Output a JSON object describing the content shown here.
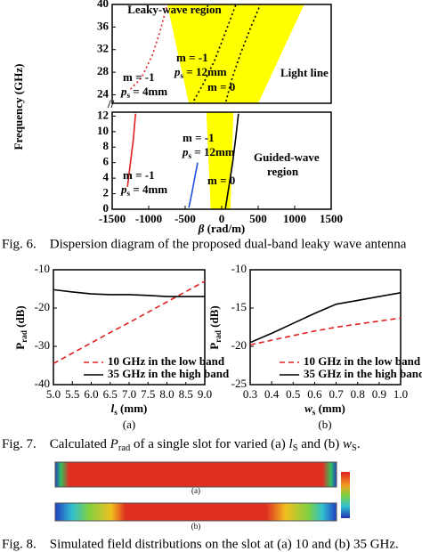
{
  "chart_data": [
    {
      "type": "line",
      "xlim": [
        -1500,
        1500
      ],
      "ylim": [
        22.5,
        40
      ],
      "yticks": [
        24,
        28,
        32,
        36,
        40
      ],
      "regions": [
        {
          "color": "#ffff00",
          "x": [
            -745,
            1130,
            500,
            -450
          ],
          "values": [
            40,
            40,
            22.5,
            22.5
          ]
        }
      ],
      "series": [
        {
          "color": "#e02020",
          "dash": "dotted",
          "x": [
            -1250,
            -1100,
            -950,
            -850,
            -745
          ],
          "values": [
            25,
            27,
            31,
            35,
            40
          ]
        },
        {
          "color": "#000000",
          "dash": "dotted",
          "x": [
            -380,
            -250,
            -100,
            50,
            195
          ],
          "values": [
            23,
            26,
            30,
            35,
            40
          ]
        },
        {
          "color": "#000000",
          "dash": "dotted",
          "x": [
            60,
            120,
            250,
            400,
            530
          ],
          "values": [
            22.8,
            26,
            31,
            36,
            40
          ]
        }
      ],
      "annotations": [
        "Leaky-wave region",
        "m = -1",
        [
          {
            "text": "p",
            "style": "italic"
          },
          {
            "text": "s",
            "style": "sub"
          },
          {
            "text": " = 12mm"
          }
        ],
        "m = -1",
        [
          {
            "text": "p",
            "style": "italic"
          },
          {
            "text": "s",
            "style": "sub"
          },
          {
            "text": " = 4mm"
          }
        ],
        "m = 0",
        "Light line"
      ]
    },
    {
      "type": "line",
      "xlim": [
        -1500,
        1500
      ],
      "ylim": [
        0,
        12.5
      ],
      "yticks": [
        0,
        2,
        4,
        6,
        8,
        10,
        12
      ],
      "xticks": [
        -1500,
        -1000,
        -500,
        0,
        500,
        1000,
        1500
      ],
      "x_label": [
        {
          "text": "β",
          "style": "italic"
        },
        {
          "text": " (rad/m)"
        }
      ],
      "y_label": "Frequency (GHz)",
      "regions": [
        {
          "color": "#ffff00",
          "x": [
            -210,
            160,
            120,
            -150
          ],
          "values": [
            12.5,
            12.5,
            0,
            0
          ]
        }
      ],
      "series": [
        {
          "color": "#e02020",
          "dash": "solid",
          "x": [
            -1290,
            -1250,
            -1210,
            -1180
          ],
          "values": [
            2.9,
            6,
            9,
            12.3
          ]
        },
        {
          "color": "#2050e0",
          "dash": "solid",
          "x": [
            -450,
            -410,
            -370,
            -330
          ],
          "values": [
            0.2,
            2,
            4,
            6
          ]
        },
        {
          "color": "#000000",
          "dash": "solid",
          "x": [
            50,
            100,
            150,
            190,
            230
          ],
          "values": [
            0,
            3,
            6,
            9,
            12.3
          ]
        }
      ],
      "annotations": [
        "m = -1",
        [
          {
            "text": "p",
            "style": "italic"
          },
          {
            "text": "s",
            "style": "sub"
          },
          {
            "text": " = 12mm"
          }
        ],
        "Guided-wave",
        "region",
        "m = -1",
        [
          {
            "text": "p",
            "style": "italic"
          },
          {
            "text": "s",
            "style": "sub"
          },
          {
            "text": " = 4mm"
          }
        ],
        "m = 0"
      ]
    },
    {
      "type": "line",
      "xlim": [
        5,
        9
      ],
      "ylim": [
        -40,
        -10
      ],
      "yticks": [
        -40,
        -30,
        -20,
        -10
      ],
      "xticks": [
        {
          "value": 5,
          "label": "5.0"
        },
        5.5,
        {
          "value": 6,
          "label": "6.0"
        },
        6.5,
        {
          "value": 7,
          "label": "7.0"
        },
        7.5,
        {
          "value": 8,
          "label": "8.0"
        },
        8.5,
        {
          "value": 9,
          "label": "9.0"
        }
      ],
      "x_label": [
        {
          "text": "l",
          "style": "italic"
        },
        {
          "text": "s",
          "style": "sub"
        },
        {
          "text": " (mm)"
        }
      ],
      "y_label": [
        {
          "text": "P"
        },
        {
          "text": "rad",
          "style": "sub"
        },
        {
          "text": " (dB)"
        }
      ],
      "panel_label": "(a)",
      "legend": "lower right",
      "x": [
        5,
        5.5,
        6,
        6.5,
        7,
        7.5,
        8,
        8.5,
        9
      ],
      "series": [
        {
          "name": "10 GHz in the low band",
          "color": "#e02020",
          "dash": "dashed",
          "values": [
            -34.5,
            -31.8,
            -29.1,
            -26.4,
            -23.8,
            -21.1,
            -18.4,
            -15.7,
            -13.0
          ]
        },
        {
          "name": "35 GHz in the high band",
          "color": "#000000",
          "dash": "solid",
          "values": [
            -15.2,
            -15.8,
            -16.3,
            -16.5,
            -16.5,
            -16.7,
            -17,
            -17,
            -17
          ]
        }
      ]
    },
    {
      "type": "line",
      "xlim": [
        0.3,
        1.0
      ],
      "ylim": [
        -25,
        -10
      ],
      "yticks": [
        -25,
        -20,
        -15,
        -10
      ],
      "xticks": [
        0.3,
        0.4,
        0.5,
        0.6,
        0.7,
        0.8,
        0.9,
        {
          "value": 1,
          "label": "1.0"
        }
      ],
      "x_label": [
        {
          "text": "w",
          "style": "italic"
        },
        {
          "text": "s",
          "style": "sub"
        },
        {
          "text": " (mm)"
        }
      ],
      "y_label": [
        {
          "text": "P"
        },
        {
          "text": "rad",
          "style": "sub"
        },
        {
          "text": " (dB)"
        }
      ],
      "panel_label": "(b)",
      "legend": "lower right",
      "x": [
        0.3,
        0.4,
        0.5,
        0.6,
        0.7,
        0.8,
        0.9,
        1.0
      ],
      "series": [
        {
          "name": "10 GHz in the low band",
          "color": "#e02020",
          "dash": "dashed",
          "values": [
            -19.8,
            -19.2,
            -18.6,
            -18.0,
            -17.5,
            -17.1,
            -16.7,
            -16.3
          ]
        },
        {
          "name": "35 GHz in the high band",
          "color": "#000000",
          "dash": "solid",
          "values": [
            -19.5,
            -18.3,
            -17.0,
            -15.7,
            -14.5,
            -14.0,
            -13.5,
            -13.0
          ]
        }
      ]
    }
  ],
  "captions": [
    "Fig. 6.    Dispersion diagram of the proposed dual-band leaky wave antenna",
    [
      {
        "text": "Fig. 7.    Calculated "
      },
      {
        "text": "P",
        "style": "italic"
      },
      {
        "text": "rad",
        "style": "sub"
      },
      {
        "text": " of a single slot for varied (a) "
      },
      {
        "text": "l",
        "style": "italic"
      },
      {
        "text": "S",
        "style": "sub"
      },
      {
        "text": " and (b) "
      },
      {
        "text": "w",
        "style": "italic"
      },
      {
        "text": "S",
        "style": "sub"
      },
      {
        "text": "."
      }
    ],
    "Fig. 8.    Simulated field distributions on the slot at (a) 10 and (b) 35 GHz."
  ],
  "fig8_labels": [
    "(a)",
    "(b)"
  ]
}
